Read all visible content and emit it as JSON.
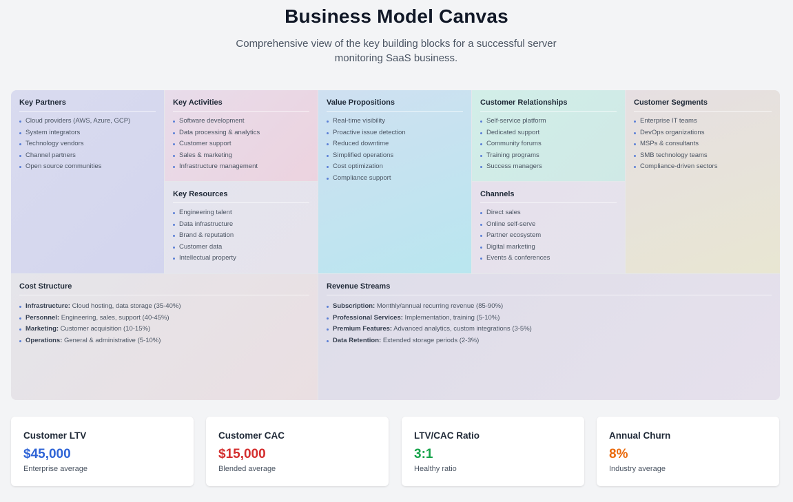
{
  "header": {
    "title": "Business Model Canvas",
    "subtitle": "Comprehensive view of the key building blocks for a successful server monitoring SaaS business."
  },
  "canvas": {
    "key_partners": {
      "title": "Key Partners",
      "items": [
        "Cloud providers (AWS, Azure, GCP)",
        "System integrators",
        "Technology vendors",
        "Channel partners",
        "Open source communities"
      ]
    },
    "key_activities": {
      "title": "Key Activities",
      "items": [
        "Software development",
        "Data processing & analytics",
        "Customer support",
        "Sales & marketing",
        "Infrastructure management"
      ]
    },
    "key_resources": {
      "title": "Key Resources",
      "items": [
        "Engineering talent",
        "Data infrastructure",
        "Brand & reputation",
        "Customer data",
        "Intellectual property"
      ]
    },
    "value_propositions": {
      "title": "Value Propositions",
      "items": [
        "Real-time visibility",
        "Proactive issue detection",
        "Reduced downtime",
        "Simplified operations",
        "Cost optimization",
        "Compliance support"
      ]
    },
    "customer_relationships": {
      "title": "Customer Relationships",
      "items": [
        "Self-service platform",
        "Dedicated support",
        "Community forums",
        "Training programs",
        "Success managers"
      ]
    },
    "channels": {
      "title": "Channels",
      "items": [
        "Direct sales",
        "Online self-serve",
        "Partner ecosystem",
        "Digital marketing",
        "Events & conferences"
      ]
    },
    "customer_segments": {
      "title": "Customer Segments",
      "items": [
        "Enterprise IT teams",
        "DevOps organizations",
        "MSPs & consultants",
        "SMB technology teams",
        "Compliance-driven sectors"
      ]
    },
    "cost_structure": {
      "title": "Cost Structure",
      "items": [
        {
          "label": "Infrastructure:",
          "text": " Cloud hosting, data storage (35-40%)"
        },
        {
          "label": "Personnel:",
          "text": " Engineering, sales, support (40-45%)"
        },
        {
          "label": "Marketing:",
          "text": " Customer acquisition (10-15%)"
        },
        {
          "label": "Operations:",
          "text": " General & administrative (5-10%)"
        }
      ]
    },
    "revenue_streams": {
      "title": "Revenue Streams",
      "items": [
        {
          "label": "Subscription:",
          "text": " Monthly/annual recurring revenue (85-90%)"
        },
        {
          "label": "Professional Services:",
          "text": " Implementation, training (5-10%)"
        },
        {
          "label": "Premium Features:",
          "text": " Advanced analytics, custom integrations (3-5%)"
        },
        {
          "label": "Data Retention:",
          "text": " Extended storage periods (2-3%)"
        }
      ]
    }
  },
  "metrics": [
    {
      "label": "Customer LTV",
      "value": "$45,000",
      "note": "Enterprise average",
      "color": "#2f64d6"
    },
    {
      "label": "Customer CAC",
      "value": "$15,000",
      "note": "Blended average",
      "color": "#d42d2d"
    },
    {
      "label": "LTV/CAC Ratio",
      "value": "3:1",
      "note": "Healthy ratio",
      "color": "#16a34a"
    },
    {
      "label": "Annual Churn",
      "value": "8%",
      "note": "Industry average",
      "color": "#ea6a0c"
    }
  ]
}
